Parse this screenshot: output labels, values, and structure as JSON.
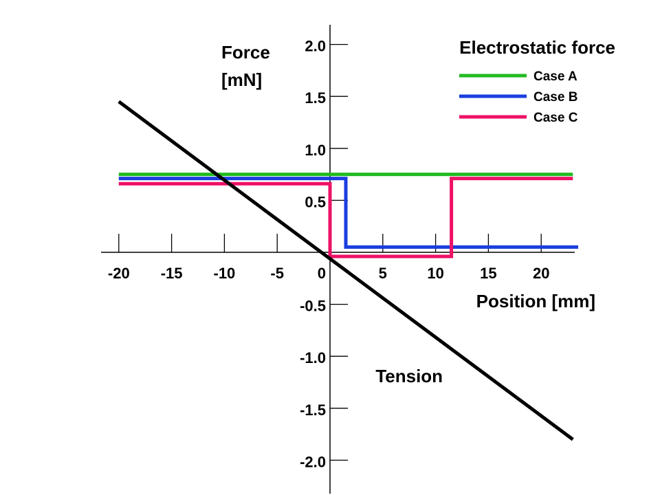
{
  "chart_data": {
    "type": "line",
    "title": "",
    "xlabel": "Position [mm]",
    "ylabel_line1": "Force",
    "ylabel_line2": "[mN]",
    "xlim": [
      -21.5,
      23.5
    ],
    "ylim": [
      -2.3,
      2.3
    ],
    "x_ticks": [
      -20,
      -15,
      -10,
      -5,
      0,
      5,
      10,
      15,
      20
    ],
    "x_tick_labels": [
      "-20",
      "-15",
      "-10",
      "-5",
      "0",
      "5",
      "10",
      "15",
      "20"
    ],
    "y_ticks": [
      2.0,
      1.5,
      1.0,
      0.5,
      -0.5,
      -1.0,
      -1.5,
      -2.0
    ],
    "y_tick_labels": [
      "2.0",
      "1.5",
      "1.0",
      "0.5",
      "-0.5",
      "-1.0",
      "-1.5",
      "-2.0"
    ],
    "grid": false,
    "legend": {
      "title": "Electrostatic force",
      "placement": "top-right"
    },
    "annotation": {
      "text": "Tension",
      "x": 7.5,
      "y": -1.25
    },
    "series": [
      {
        "name": "Case A",
        "color": "#22bb22",
        "in_legend": true,
        "x": [
          -20,
          23
        ],
        "y": [
          0.75,
          0.75
        ]
      },
      {
        "name": "Case B",
        "color": "#1a3ee0",
        "in_legend": true,
        "x": [
          -20,
          1.5,
          1.5,
          23.5
        ],
        "y": [
          0.71,
          0.71,
          0.05,
          0.05
        ]
      },
      {
        "name": "Case C",
        "color": "#ee1166",
        "in_legend": true,
        "x": [
          -20,
          0,
          0,
          11.5,
          11.5,
          23
        ],
        "y": [
          0.66,
          0.66,
          -0.04,
          -0.04,
          0.71,
          0.71
        ]
      },
      {
        "name": "Tension",
        "color": "#000000",
        "in_legend": false,
        "x": [
          -20,
          23
        ],
        "y": [
          1.45,
          -1.8
        ]
      }
    ]
  }
}
